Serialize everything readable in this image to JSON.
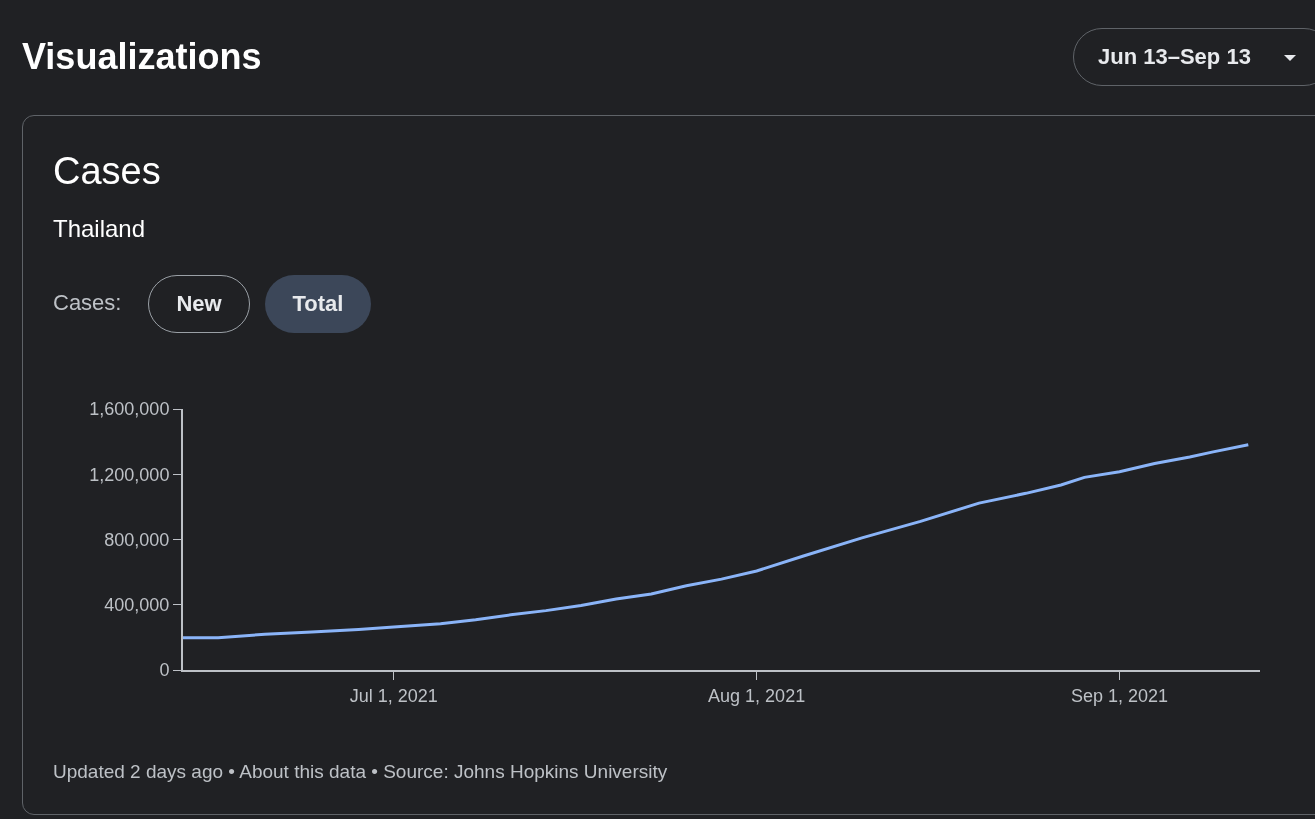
{
  "chart_data": {
    "type": "line",
    "title": "Cases",
    "subtitle": "Thailand",
    "annotations": [
      "Visualizations",
      "Jun 13–Sep 13",
      "Cases:",
      "New",
      "Total",
      "Updated 2 days ago • About this data • Source: Johns Hopkins University"
    ],
    "x": [
      "2021-06-13",
      "2021-06-16",
      "2021-06-20",
      "2021-06-24",
      "2021-06-28",
      "2021-07-01",
      "2021-07-05",
      "2021-07-08",
      "2021-07-11",
      "2021-07-14",
      "2021-07-17",
      "2021-07-20",
      "2021-07-23",
      "2021-07-26",
      "2021-07-29",
      "2021-08-01",
      "2021-08-05",
      "2021-08-10",
      "2021-08-15",
      "2021-08-20",
      "2021-08-24",
      "2021-08-27",
      "2021-08-29",
      "2021-09-01",
      "2021-09-04",
      "2021-09-07",
      "2021-09-09",
      "2021-09-12"
    ],
    "series": [
      {
        "color": "#8ab4f8",
        "values": [
          198000,
          198000,
          219000,
          233000,
          249000,
          263000,
          284000,
          308000,
          338000,
          364000,
          395000,
          435000,
          466000,
          516000,
          557000,
          607000,
          699000,
          810000,
          911000,
          1023000,
          1083000,
          1134000,
          1181000,
          1215000,
          1266000,
          1306000,
          1337000,
          1381000
        ]
      }
    ],
    "xlim": [
      "2021-06-13",
      "2021-09-13"
    ],
    "xticks": [
      {
        "value": "2021-07-01",
        "label": "Jul 1, 2021"
      },
      {
        "value": "2021-08-01",
        "label": "Aug 1, 2021"
      },
      {
        "value": "2021-09-01",
        "label": "Sep 1, 2021"
      }
    ],
    "ylim": [
      0,
      1600000
    ],
    "yticks": [
      0,
      {
        "value": 400000,
        "label": "400,000"
      },
      {
        "value": 800000,
        "label": "800,000"
      },
      {
        "value": 1200000,
        "label": "1,200,000"
      },
      {
        "value": 1600000,
        "label": "1,600,000"
      }
    ],
    "grid": false,
    "marker": "none",
    "line_style": "solid"
  }
}
